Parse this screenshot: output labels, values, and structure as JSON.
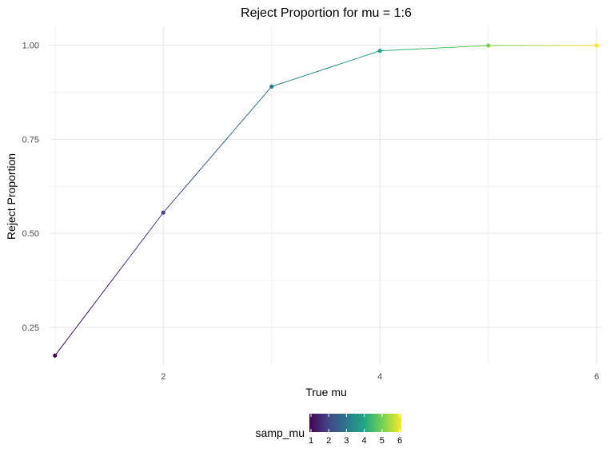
{
  "chart_data": {
    "type": "line",
    "title": "Reject Proportion for mu = 1:6",
    "xlabel": "True mu",
    "ylabel": "Reject Proportion",
    "x": [
      1,
      2,
      3,
      4,
      5,
      6
    ],
    "y": [
      0.175,
      0.555,
      0.89,
      0.985,
      0.999,
      0.999
    ],
    "xlim": [
      0.95,
      6.05
    ],
    "ylim": [
      0.15,
      1.05
    ],
    "x_ticks": [
      2,
      4,
      6
    ],
    "x_tick_labels": [
      "2",
      "4",
      "6"
    ],
    "y_ticks": [
      0.25,
      0.5,
      0.75,
      1.0
    ],
    "y_tick_labels": [
      "0.25",
      "0.50",
      "0.75",
      "1.00"
    ],
    "grid": true,
    "color_scale": {
      "name": "samp_mu",
      "palette": "viridis",
      "range": [
        1,
        6
      ],
      "ticks": [
        "1",
        "2",
        "3",
        "4",
        "5",
        "6"
      ],
      "colors": [
        "#440154",
        "#414487",
        "#2a788e",
        "#22a884",
        "#7ad151",
        "#fde725"
      ]
    },
    "legend_position": "bottom"
  }
}
